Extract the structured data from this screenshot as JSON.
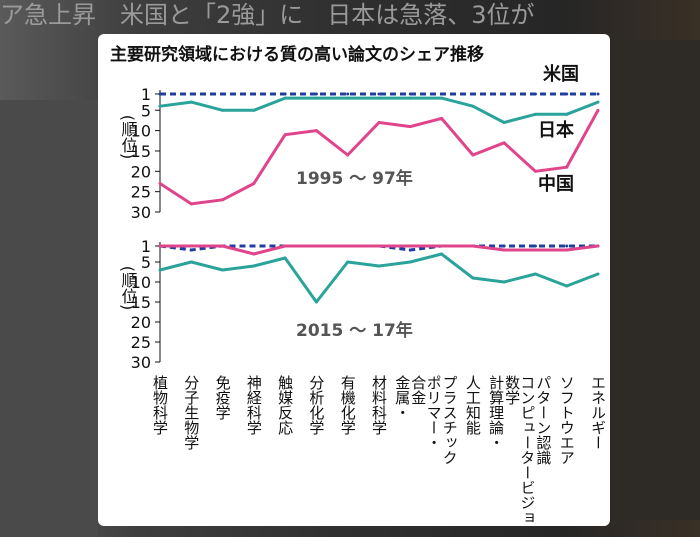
{
  "background": {
    "headline": "ア急上昇　米国と「2強」に　日本は急落、3位が"
  },
  "chart_data": {
    "title": "主要研究領域における質の高い論文のシェア推移",
    "type": "line",
    "categories": [
      "植物科学",
      "分子生物学",
      "免疫学",
      "神経科学",
      "触媒反応",
      "分析化学",
      "有機化学",
      "材料科学",
      "金属・合金",
      "ポリマー・プラスチック",
      "人工知能",
      "計算理論・数学",
      "コンピュータービジョン・パターン認識",
      "ソフトウエア",
      "エネルギー"
    ],
    "y_axis": {
      "label": "(順位)",
      "ticks": [
        1,
        5,
        10,
        15,
        20,
        25,
        30
      ],
      "reversed": true,
      "ylim": [
        1,
        30
      ]
    },
    "panels": [
      {
        "period": "1995 ～ 97年",
        "series": [
          {
            "name": "米国",
            "color": "#1f3fa0",
            "style": "dashed",
            "values": [
              1,
              1,
              1,
              1,
              1,
              1,
              1,
              1,
              1,
              1,
              1,
              1,
              1,
              1,
              1
            ]
          },
          {
            "name": "日本",
            "color": "#2aa39a",
            "style": "solid",
            "values": [
              4,
              3,
              5,
              5,
              2,
              2,
              2,
              2,
              2,
              2,
              4,
              8,
              6,
              6,
              3
            ]
          },
          {
            "name": "中国",
            "color": "#e0448a",
            "style": "solid",
            "values": [
              23,
              28,
              27,
              23,
              11,
              10,
              16,
              8,
              9,
              7,
              16,
              13,
              20,
              19,
              5
            ]
          }
        ]
      },
      {
        "period": "2015 ～ 17年",
        "series": [
          {
            "name": "米国",
            "color": "#1f3fa0",
            "style": "dashed",
            "values": [
              1,
              2,
              1,
              1,
              1,
              1,
              1,
              1,
              2,
              1,
              1,
              1,
              1,
              1,
              1
            ]
          },
          {
            "name": "日本",
            "color": "#2aa39a",
            "style": "solid",
            "values": [
              7,
              5,
              7,
              6,
              4,
              15,
              5,
              6,
              5,
              3,
              9,
              10,
              8,
              11,
              8
            ]
          },
          {
            "name": "中国",
            "color": "#e0448a",
            "style": "solid",
            "values": [
              1,
              1,
              1,
              3,
              1,
              1,
              1,
              1,
              1,
              1,
              1,
              2,
              2,
              2,
              1
            ]
          }
        ]
      }
    ]
  }
}
